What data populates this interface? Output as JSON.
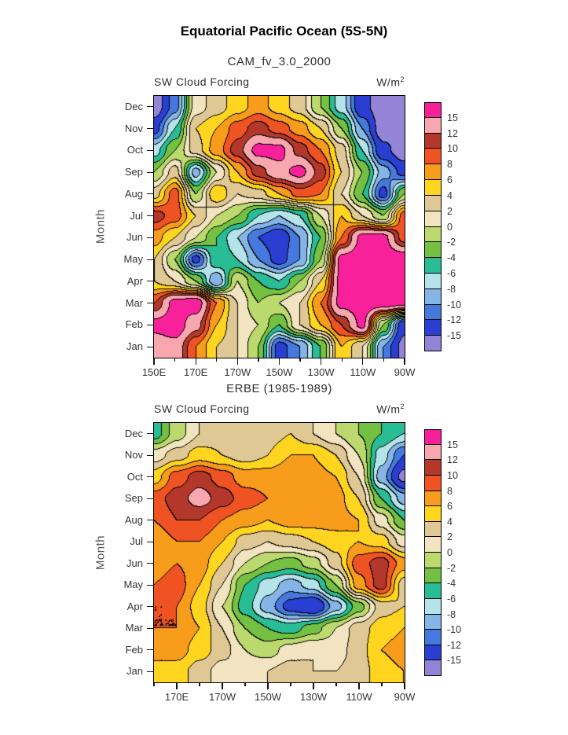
{
  "page": {
    "title": "Equatorial Pacific Ocean (5S-5N)"
  },
  "colorbar": {
    "levels": [
      -15,
      -12,
      -10,
      -8,
      -6,
      -4,
      -2,
      0,
      2,
      4,
      6,
      8,
      10,
      12,
      15
    ],
    "colors": [
      "#9484D8",
      "#2A3FD1",
      "#4679DD",
      "#85B5E6",
      "#B5E3EA",
      "#29BD96",
      "#74C043",
      "#BCD96E",
      "#F2E4C0",
      "#DFC894",
      "#FFD51F",
      "#F89C1B",
      "#F05323",
      "#B3382B",
      "#F9A7AE",
      "#F8219B"
    ],
    "labels": [
      "15",
      "12",
      "10",
      "8",
      "6",
      "4",
      "2",
      "0",
      "-2",
      "-4",
      "-6",
      "-8",
      "-10",
      "-12",
      "-15"
    ]
  },
  "chart_data": [
    {
      "type": "heatmap",
      "title": "CAM_fv_3.0_2000",
      "field_label": "SW Cloud Forcing",
      "unit_base": "W/m",
      "unit_exp": "2",
      "ylabel": "Month",
      "months": [
        "Jan",
        "Feb",
        "Mar",
        "Apr",
        "May",
        "Jun",
        "Jul",
        "Aug",
        "Sep",
        "Oct",
        "Nov",
        "Dec"
      ],
      "lon_min": 150,
      "lon_max": 270,
      "minor_tick_step": 10,
      "x_ticks": [
        {
          "lon": 150,
          "label": "150E"
        },
        {
          "lon": 170,
          "label": "170E"
        },
        {
          "lon": 190,
          "label": "170W"
        },
        {
          "lon": 210,
          "label": "150W"
        },
        {
          "lon": 230,
          "label": "130W"
        },
        {
          "lon": 250,
          "label": "110W"
        },
        {
          "lon": 270,
          "label": "90W"
        }
      ],
      "lons": [
        150,
        160,
        170,
        180,
        190,
        200,
        210,
        220,
        230,
        240,
        250,
        260,
        270
      ],
      "values": [
        [
          13,
          14,
          8,
          4,
          2,
          -2,
          -13,
          -10,
          -4,
          6,
          2,
          -10,
          -16
        ],
        [
          16,
          17,
          13,
          6,
          2,
          0,
          -4,
          2,
          6,
          10,
          16,
          -2,
          -14
        ],
        [
          10,
          16,
          17,
          8,
          2,
          -2,
          0,
          2,
          8,
          16,
          17,
          17,
          16
        ],
        [
          4,
          2,
          -2,
          -10,
          0,
          -4,
          -6,
          -2,
          4,
          16,
          17,
          17,
          17
        ],
        [
          4,
          -2,
          -13,
          -4,
          -6,
          -10,
          -13,
          -10,
          -2,
          16,
          17,
          17,
          17
        ],
        [
          7,
          4,
          0,
          -4,
          -8,
          -12,
          -14,
          -10,
          -4,
          8,
          16,
          16,
          9
        ],
        [
          11,
          9,
          4,
          0,
          -2,
          -6,
          -8,
          -6,
          0,
          6,
          2,
          -2,
          9
        ],
        [
          3,
          9,
          -2,
          6,
          2,
          3,
          6,
          9,
          8,
          2,
          -4,
          -13,
          -2
        ],
        [
          -2,
          3,
          -9,
          0,
          6,
          11,
          14,
          16,
          11,
          4,
          -2,
          -9,
          -13
        ],
        [
          -7,
          -2,
          3,
          7,
          11,
          16,
          16,
          11,
          8,
          3,
          -6,
          -14,
          -17
        ],
        [
          -13,
          -6,
          4,
          6,
          9,
          11,
          9,
          7,
          4,
          -2,
          -10,
          -17,
          -17
        ],
        [
          -17,
          -11,
          1,
          3,
          5,
          7,
          5,
          3,
          -2,
          -7,
          -14,
          -17,
          -17
        ]
      ]
    },
    {
      "type": "heatmap",
      "title": "ERBE (1985-1989)",
      "field_label": "SW Cloud Forcing",
      "unit_base": "W/m",
      "unit_exp": "2",
      "ylabel": "Month",
      "months": [
        "Jan",
        "Feb",
        "Mar",
        "Apr",
        "May",
        "Jun",
        "Jul",
        "Aug",
        "Sep",
        "Oct",
        "Nov",
        "Dec"
      ],
      "lon_min": 160,
      "lon_max": 270,
      "minor_tick_step": 10,
      "x_ticks": [
        {
          "lon": 170,
          "label": "170E"
        },
        {
          "lon": 190,
          "label": "170W"
        },
        {
          "lon": 210,
          "label": "150W"
        },
        {
          "lon": 230,
          "label": "130W"
        },
        {
          "lon": 250,
          "label": "110W"
        },
        {
          "lon": 270,
          "label": "90W"
        }
      ],
      "lons": [
        160,
        170,
        180,
        190,
        200,
        210,
        220,
        230,
        240,
        250,
        260,
        270
      ],
      "values": [
        [
          5,
          5,
          3,
          1,
          1,
          2,
          3,
          2,
          2,
          3,
          5,
          6
        ],
        [
          7,
          7,
          5,
          3,
          0,
          -1,
          1,
          2,
          1,
          3,
          6,
          7
        ],
        [
          8,
          8,
          6,
          2,
          -2,
          -4,
          -5,
          -3,
          0,
          3,
          5,
          6
        ],
        [
          8,
          8,
          5,
          0,
          -5,
          -9,
          -13,
          -15,
          -9,
          -3,
          3,
          4
        ],
        [
          8,
          9,
          6,
          2,
          -4,
          -7,
          -9,
          -7,
          -2,
          7,
          11,
          3
        ],
        [
          7,
          8,
          7,
          4,
          0,
          -2,
          -3,
          -1,
          3,
          9,
          11,
          7
        ],
        [
          6,
          8,
          8,
          6,
          3,
          2,
          3,
          4,
          5,
          6,
          5,
          1
        ],
        [
          8,
          10,
          10,
          8,
          7,
          6,
          7,
          7,
          7,
          6,
          1,
          -4
        ],
        [
          9,
          11,
          13,
          11,
          9,
          8,
          8,
          8,
          7,
          4,
          -4,
          -9
        ],
        [
          5,
          9,
          11,
          9,
          7,
          7,
          8,
          7,
          6,
          2,
          -9,
          -16
        ],
        [
          1,
          3,
          5,
          4,
          3,
          4,
          6,
          6,
          4,
          0,
          -7,
          -12
        ],
        [
          -5,
          -1,
          2,
          3,
          2,
          3,
          4,
          2,
          0,
          -2,
          -4,
          -6
        ]
      ]
    }
  ]
}
